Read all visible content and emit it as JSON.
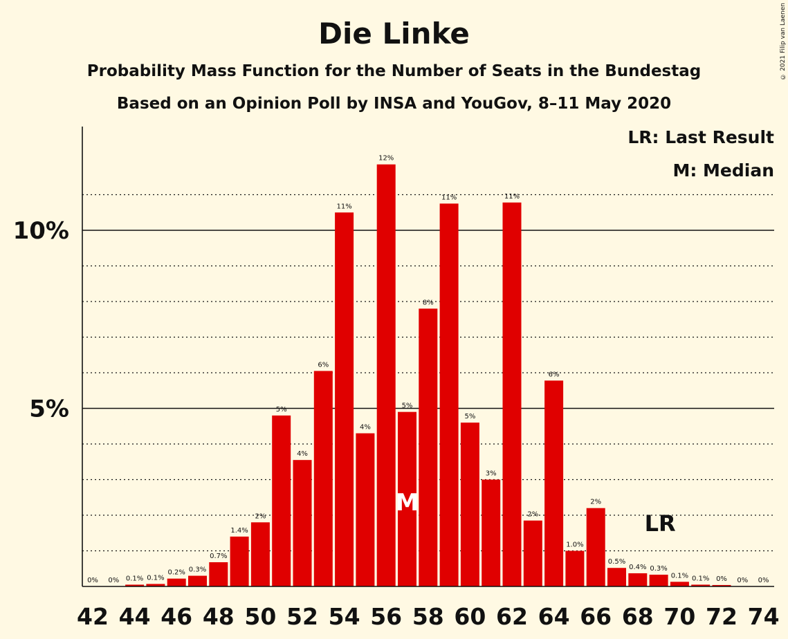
{
  "title": "Die Linke",
  "subtitle": "Probability Mass Function for the Number of Seats in the Bundestag",
  "subtitle2": "Based on an Opinion Poll by INSA and YouGov, 8–11 May 2020",
  "copyright": "© 2021 Filip van Laenen",
  "legend": {
    "last_result": "LR: Last Result",
    "median": "M: Median"
  },
  "colors": {
    "bar": "#E00000",
    "background": "#FFF9E3",
    "median_marker": "#FFFFFF",
    "text": "#111111"
  },
  "chart_data": {
    "type": "bar",
    "categories": [
      42,
      43,
      44,
      45,
      46,
      47,
      48,
      49,
      50,
      51,
      52,
      53,
      54,
      55,
      56,
      57,
      58,
      59,
      60,
      61,
      62,
      63,
      64,
      65,
      66,
      67,
      68,
      69,
      70,
      71,
      72,
      73,
      74
    ],
    "values": [
      0.0,
      0.0,
      0.05,
      0.07,
      0.22,
      0.3,
      0.68,
      1.4,
      1.8,
      4.8,
      3.55,
      6.05,
      10.5,
      4.3,
      11.85,
      4.9,
      7.8,
      10.75,
      4.6,
      3.0,
      10.78,
      1.85,
      5.78,
      1.0,
      2.2,
      0.52,
      0.37,
      0.33,
      0.13,
      0.05,
      0.04,
      0.0,
      0.0
    ],
    "labels": [
      "0%",
      "0%",
      "0.1%",
      "0.1%",
      "0.2%",
      "0.3%",
      "0.7%",
      "1.4%",
      "2%",
      "5%",
      "4%",
      "6%",
      "11%",
      "4%",
      "12%",
      "5%",
      "8%",
      "11%",
      "5%",
      "3%",
      "11%",
      "2%",
      "6%",
      "1.0%",
      "2%",
      "0.5%",
      "0.4%",
      "0.3%",
      "0.1%",
      "0.1%",
      "0%",
      "0%",
      "0%"
    ],
    "x_tick_labels": [
      "42",
      "44",
      "46",
      "48",
      "50",
      "52",
      "54",
      "56",
      "58",
      "60",
      "62",
      "64",
      "66",
      "68",
      "70",
      "72",
      "74"
    ],
    "y_tick_labels": [
      "5%",
      "10%"
    ],
    "y_ticks": [
      5,
      10
    ],
    "ylim": [
      0,
      12.8
    ],
    "median_seat": 57,
    "median_label": "M",
    "last_result_seat": 69,
    "last_result_label": "LR",
    "grid": "dotted every 1%, solid at 5% and 10%"
  }
}
